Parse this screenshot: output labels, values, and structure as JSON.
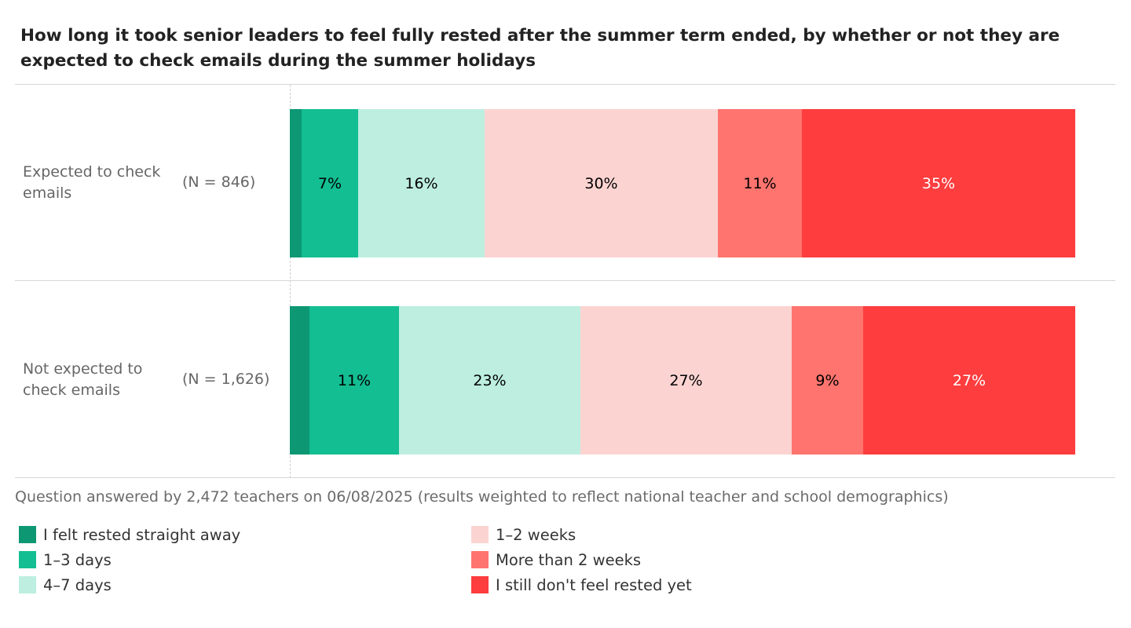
{
  "title": "How long it took senior leaders to feel fully rested after the summer term ended, by whether or not they are expected to check emails during the summer holidays",
  "note": "Question answered by 2,472 teachers on 06/08/2025 (results weighted to reflect national teacher and school demographics)",
  "chart_data": {
    "type": "bar",
    "orientation": "horizontal",
    "stacked": true,
    "normalized_percent": true,
    "categories": [
      "Expected to check emails",
      "Not expected to check emails"
    ],
    "category_n": [
      "(N = 846)",
      "(N = 1,626)"
    ],
    "series": [
      {
        "name": "I felt rested straight away",
        "color": "#0d9873",
        "values": [
          1.5,
          2.5
        ],
        "labels": [
          "",
          ""
        ],
        "label_color": "#000000"
      },
      {
        "name": "1–3 days",
        "color": "#13be92",
        "values": [
          7.2,
          11.4
        ],
        "labels": [
          "7%",
          "11%"
        ],
        "label_color": "#000000"
      },
      {
        "name": "4–7 days",
        "color": "#bdeee0",
        "values": [
          16.1,
          23.1
        ],
        "labels": [
          "16%",
          "23%"
        ],
        "label_color": "#000000"
      },
      {
        "name": "1–2 weeks",
        "color": "#fbd4d2",
        "values": [
          29.7,
          26.9
        ],
        "labels": [
          "30%",
          "27%"
        ],
        "label_color": "#000000"
      },
      {
        "name": "More than 2 weeks",
        "color": "#ff746e",
        "values": [
          10.7,
          9.1
        ],
        "labels": [
          "11%",
          "9%"
        ],
        "label_color": "#000000"
      },
      {
        "name": "I still don't feel rested yet",
        "color": "#fd3d3e",
        "values": [
          34.8,
          27.0
        ],
        "labels": [
          "35%",
          "27%"
        ],
        "label_color": "#ffffff"
      }
    ],
    "xlim": [
      0,
      100
    ],
    "legend_position": "bottom"
  }
}
